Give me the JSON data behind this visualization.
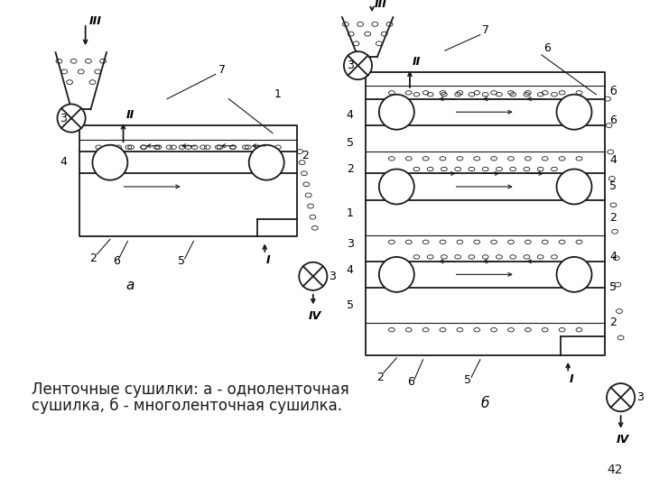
{
  "caption_line1": "Ленточные сушилки: а - одноленточная",
  "caption_line2": "сушилка, б - многоленточная сушилка.",
  "page_number": "42",
  "bg_color": "#ffffff",
  "line_color": "#1a1a1a",
  "caption_fontsize": 12,
  "page_num_fontsize": 10,
  "diagram_a_label": "а",
  "diagram_b_label": "б",
  "lw": 1.3,
  "thin_lw": 0.8
}
